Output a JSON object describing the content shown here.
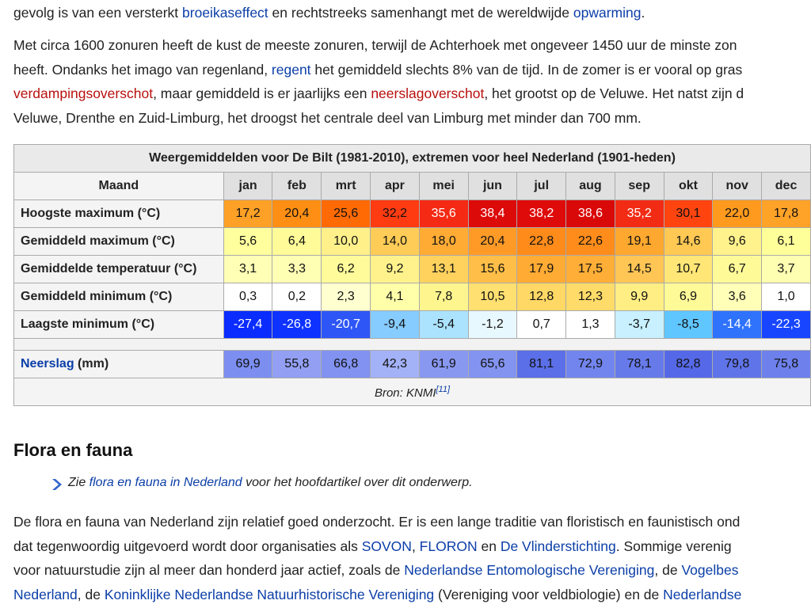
{
  "intro": [
    [
      {
        "text": "gevolg is van een versterkt "
      },
      {
        "text": "broeikaseffect",
        "link": "blue"
      },
      {
        "text": " en rechtstreeks samenhangt met de wereldwijde "
      },
      {
        "text": "opwarming",
        "link": "blue"
      },
      {
        "text": "."
      }
    ]
  ],
  "paragraph_1": [
    [
      {
        "text": "Met circa 1600 zonuren heeft de kust de meeste zonuren, terwijl de Achterhoek met ongeveer 1450 uur de minste zon"
      }
    ],
    [
      {
        "text": "heeft. Ondanks het imago van regenland, "
      },
      {
        "text": "regent",
        "link": "blue"
      },
      {
        "text": " het gemiddeld slechts 8% van de tijd. In de zomer is er vooral op gras"
      }
    ],
    [
      {
        "text": "verdampingsoverschot",
        "link": "red"
      },
      {
        "text": ", maar gemiddeld is er jaarlijks een "
      },
      {
        "text": "neerslagoverschot",
        "link": "red"
      },
      {
        "text": ", het grootst op de Veluwe. Het natst zijn d"
      }
    ],
    [
      {
        "text": "Veluwe, Drenthe en Zuid-Limburg, het droogst het centrale deel van Limburg met minder dan 700 mm."
      }
    ]
  ],
  "climate_table": {
    "caption": "Weergemiddelden voor De Bilt (1981-2010), extremen voor heel Nederland (1901-heden)",
    "header_label": "Maand",
    "months": [
      "jan",
      "feb",
      "mrt",
      "apr",
      "mei",
      "jun",
      "jul",
      "aug",
      "sep",
      "okt",
      "nov",
      "dec"
    ],
    "rows": [
      {
        "label": "Hoogste maximum (°C)",
        "values": [
          "17,2",
          "20,4",
          "25,6",
          "32,2",
          "35,6",
          "38,4",
          "38,2",
          "38,6",
          "35,2",
          "30,1",
          "22,0",
          "17,8"
        ],
        "colors": [
          "#ffa126",
          "#ff8f14",
          "#ff6a05",
          "#ff3b12",
          "#f42a14",
          "#dd0a0a",
          "#df0b0b",
          "#da0909",
          "#f22c14",
          "#ff4410",
          "#ff9a1e",
          "#ffa228"
        ]
      },
      {
        "label": "Gemiddeld maximum (°C)",
        "values": [
          "5,6",
          "6,4",
          "10,0",
          "14,0",
          "18,0",
          "20,4",
          "22,8",
          "22,6",
          "19,1",
          "14,6",
          "9,6",
          "6,1"
        ],
        "colors": [
          "#ffff9e",
          "#fffb98",
          "#fff08a",
          "#ffcd57",
          "#ffab34",
          "#ff9a27",
          "#ff8b1a",
          "#ff8c1b",
          "#ffa82f",
          "#ffc953",
          "#fff28c",
          "#ffff9a"
        ]
      },
      {
        "label": "Gemiddelde temperatuur (°C)",
        "values": [
          "3,1",
          "3,3",
          "6,2",
          "9,2",
          "13,1",
          "15,6",
          "17,9",
          "17,5",
          "14,5",
          "10,7",
          "6,7",
          "3,7"
        ],
        "colors": [
          "#ffffb6",
          "#ffffb4",
          "#fffb9a",
          "#fff28c",
          "#ffd25e",
          "#ffbe48",
          "#ffab34",
          "#ffae37",
          "#ffc655",
          "#ffe676",
          "#fffa98",
          "#ffffb2"
        ]
      },
      {
        "label": "Gemiddeld minimum (°C)",
        "values": [
          "0,3",
          "0,2",
          "2,3",
          "4,1",
          "7,8",
          "10,5",
          "12,8",
          "12,3",
          "9,9",
          "6,9",
          "3,6",
          "1,0"
        ],
        "colors": [
          "#ffffff",
          "#ffffff",
          "#ffffd0",
          "#ffffaa",
          "#fff58e",
          "#ffe070",
          "#ffd865",
          "#ffdb69",
          "#ffee84",
          "#fffa98",
          "#ffffb8",
          "#ffffff"
        ]
      },
      {
        "label": "Laagste minimum (°C)",
        "values": [
          "-27,4",
          "-26,8",
          "-20,7",
          "-9,4",
          "-5,4",
          "-1,2",
          "0,7",
          "1,3",
          "-3,7",
          "-8,5",
          "-14,4",
          "-22,3"
        ],
        "colors": [
          "#0a2cff",
          "#0e32ff",
          "#2e56f6",
          "#86ccff",
          "#abe3ff",
          "#e8f8ff",
          "#ffffff",
          "#ffffff",
          "#c8f0ff",
          "#5fc6ff",
          "#2f72fc",
          "#1846ff"
        ]
      }
    ],
    "precipitation": {
      "label_link": "Neerslag",
      "label_rest": " (mm)",
      "values": [
        "69,9",
        "55,8",
        "66,8",
        "42,3",
        "61,9",
        "65,6",
        "81,1",
        "72,9",
        "78,1",
        "82,8",
        "79,8",
        "75,8"
      ],
      "colors": [
        "#7c8ef0",
        "#929ff3",
        "#8192f0",
        "#a3b2f6",
        "#8898f1",
        "#8293f0",
        "#5b6fe8",
        "#7285ee",
        "#677aea",
        "#5569e8",
        "#6074e9",
        "#6d80ec"
      ]
    },
    "source": {
      "text": "Bron: KNMI",
      "ref": "[11]"
    }
  },
  "section": {
    "heading": "Flora en fauna",
    "hatnote": [
      {
        "text": "Zie "
      },
      {
        "text": "flora en fauna in Nederland",
        "link": "blue"
      },
      {
        "text": " voor het hoofdartikel over dit onderwerp."
      }
    ],
    "paragraph": [
      [
        {
          "text": "De flora en fauna van Nederland zijn relatief goed onderzocht. Er is een lange traditie van floristisch en faunistisch ond"
        }
      ],
      [
        {
          "text": "dat tegenwoordig uitgevoerd wordt door organisaties als "
        },
        {
          "text": "SOVON",
          "link": "blue"
        },
        {
          "text": ", "
        },
        {
          "text": "FLORON",
          "link": "blue"
        },
        {
          "text": " en "
        },
        {
          "text": "De Vlinderstichting",
          "link": "blue"
        },
        {
          "text": ". Sommige verenig"
        }
      ],
      [
        {
          "text": "voor natuurstudie zijn al meer dan honderd jaar actief, zoals de "
        },
        {
          "text": "Nederlandse Entomologische Vereniging",
          "link": "blue"
        },
        {
          "text": ", de "
        },
        {
          "text": "Vogelbes",
          "link": "blue"
        }
      ],
      [
        {
          "text": "Nederland",
          "link": "blue"
        },
        {
          "text": ", de "
        },
        {
          "text": "Koninklijke Nederlandse Natuurhistorische Vereniging",
          "link": "blue"
        },
        {
          "text": " (Vereniging voor veldbiologie) en de "
        },
        {
          "text": "Nederlandse",
          "link": "blue"
        }
      ]
    ]
  }
}
